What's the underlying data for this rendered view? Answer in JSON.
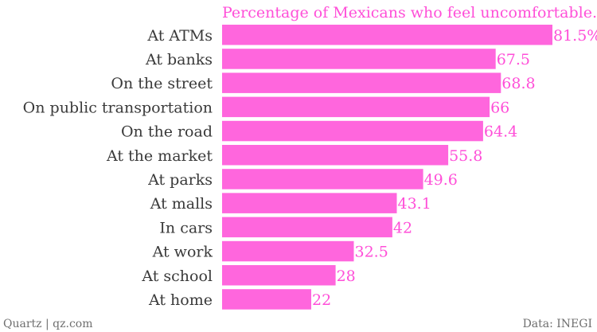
{
  "footer": {
    "source_left": "Quartz | qz.com",
    "source_right": "Data: INEGI"
  },
  "chart_data": {
    "type": "bar",
    "orientation": "horizontal",
    "title": "Percentage of Mexicans who feel uncomfortable...",
    "categories": [
      "At ATMs",
      "At banks",
      "On the street",
      "On public transportation",
      "On the road",
      "At the market",
      "At parks",
      "At malls",
      "In cars",
      "At work",
      "At school",
      "At home"
    ],
    "values": [
      81.5,
      67.5,
      68.8,
      66,
      64.4,
      55.8,
      49.6,
      43.1,
      42,
      32.5,
      28,
      22
    ],
    "value_labels": [
      "81.5%",
      "67.5",
      "68.8",
      "66",
      "64.4",
      "55.8",
      "49.6",
      "43.1",
      "42",
      "32.5",
      "28",
      "22"
    ],
    "xlim": [
      0,
      81.5
    ],
    "grid": false,
    "legend": "none",
    "colors": {
      "bar": "#ff66dd",
      "value_text": "#ff4fd8",
      "title_text": "#ff4fd8",
      "category_text": "#3a3a3a"
    }
  }
}
